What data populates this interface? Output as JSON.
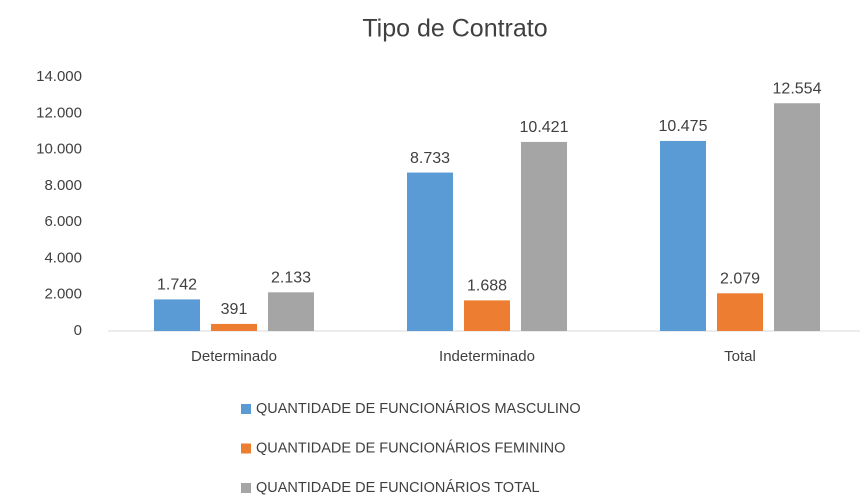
{
  "chart_data": {
    "type": "bar",
    "title": "Tipo de Contrato",
    "categories": [
      "Determinado",
      "Indeterminado",
      "Total"
    ],
    "series": [
      {
        "name": "QUANTIDADE DE FUNCIONÁRIOS MASCULINO",
        "color": "#5b9bd5",
        "values": [
          1742,
          8733,
          10475
        ],
        "value_labels": [
          "1.742",
          "8.733",
          "10.475"
        ]
      },
      {
        "name": "QUANTIDADE DE FUNCIONÁRIOS FEMININO",
        "color": "#ed7d31",
        "values": [
          391,
          1688,
          2079
        ],
        "value_labels": [
          "391",
          "1.688",
          "2.079"
        ]
      },
      {
        "name": "QUANTIDADE DE FUNCIONÁRIOS TOTAL",
        "color": "#a5a5a5",
        "values": [
          2133,
          10421,
          12554
        ],
        "value_labels": [
          "2.133",
          "10.421",
          "12.554"
        ]
      }
    ],
    "ylim": [
      0,
      14000
    ],
    "yticks": [
      0,
      {
        "value": 2000,
        "label": "2.000"
      },
      {
        "value": 4000,
        "label": "4.000"
      },
      {
        "value": 6000,
        "label": "6.000"
      },
      {
        "value": 8000,
        "label": "8.000"
      },
      {
        "value": 10000,
        "label": "10.000"
      },
      {
        "value": 12000,
        "label": "12.000"
      },
      {
        "value": 14000,
        "label": "14.000"
      }
    ],
    "grid": false,
    "legend": "bottom"
  }
}
